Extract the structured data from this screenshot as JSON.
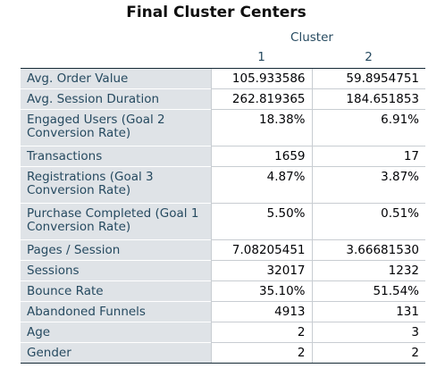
{
  "title": "Final Cluster Centers",
  "group_header": "Cluster",
  "columns": [
    "1",
    "2"
  ],
  "rows": [
    {
      "label": "Avg. Order Value",
      "v1": "105.933586",
      "v2": "59.8954751"
    },
    {
      "label": "Avg. Session Duration",
      "v1": "262.819365",
      "v2": "184.651853"
    },
    {
      "label": "Engaged Users (Goal 2 Conversion Rate)",
      "v1": "18.38%",
      "v2": "6.91%"
    },
    {
      "label": "Transactions",
      "v1": "1659",
      "v2": "17"
    },
    {
      "label": "Registrations (Goal 3 Conversion Rate)",
      "v1": "4.87%",
      "v2": "3.87%"
    },
    {
      "label": "Purchase Completed (Goal 1 Conversion Rate)",
      "v1": "5.50%",
      "v2": "0.51%"
    },
    {
      "label": "Pages / Session",
      "v1": "7.08205451",
      "v2": "3.66681530"
    },
    {
      "label": "Sessions",
      "v1": "32017",
      "v2": "1232"
    },
    {
      "label": "Bounce Rate",
      "v1": "35.10%",
      "v2": "51.54%"
    },
    {
      "label": "Abandoned Funnels",
      "v1": "4913",
      "v2": "131"
    },
    {
      "label": "Age",
      "v1": "2",
      "v2": "3"
    },
    {
      "label": "Gender",
      "v1": "2",
      "v2": "2"
    }
  ],
  "colors": {
    "label_background": "#dfe3e7",
    "header_text": "#264a60",
    "rule": "#152935"
  }
}
